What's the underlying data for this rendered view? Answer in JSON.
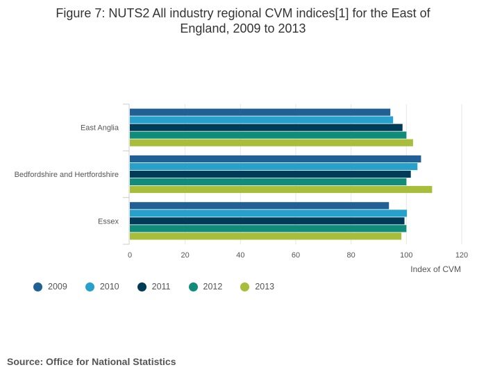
{
  "chart_data": {
    "type": "bar",
    "orientation": "horizontal",
    "title": "Figure 7: NUTS2 All industry regional CVM indices[1] for the East of England, 2009 to 2013",
    "xlabel": "Index of CVM",
    "ylabel": "",
    "xlim": [
      0,
      120
    ],
    "xticks": [
      0,
      20,
      40,
      60,
      80,
      100,
      120
    ],
    "categories": [
      "East Anglia",
      "Bedfordshire and Hertfordshire",
      "Essex"
    ],
    "series": [
      {
        "name": "2009",
        "color": "#206095",
        "values": [
          94.2,
          105.3,
          93.7
        ]
      },
      {
        "name": "2010",
        "color": "#27a0cc",
        "values": [
          95.2,
          104.0,
          100.2
        ]
      },
      {
        "name": "2011",
        "color": "#003c57",
        "values": [
          98.6,
          101.6,
          99.3
        ]
      },
      {
        "name": "2012",
        "color": "#118c7b",
        "values": [
          100.0,
          100.0,
          100.0
        ]
      },
      {
        "name": "2013",
        "color": "#a8bd3a",
        "values": [
          102.4,
          109.3,
          98.2
        ]
      }
    ],
    "grid": true,
    "legend_position": "bottom-left"
  },
  "source": "Source: Office for National Statistics"
}
